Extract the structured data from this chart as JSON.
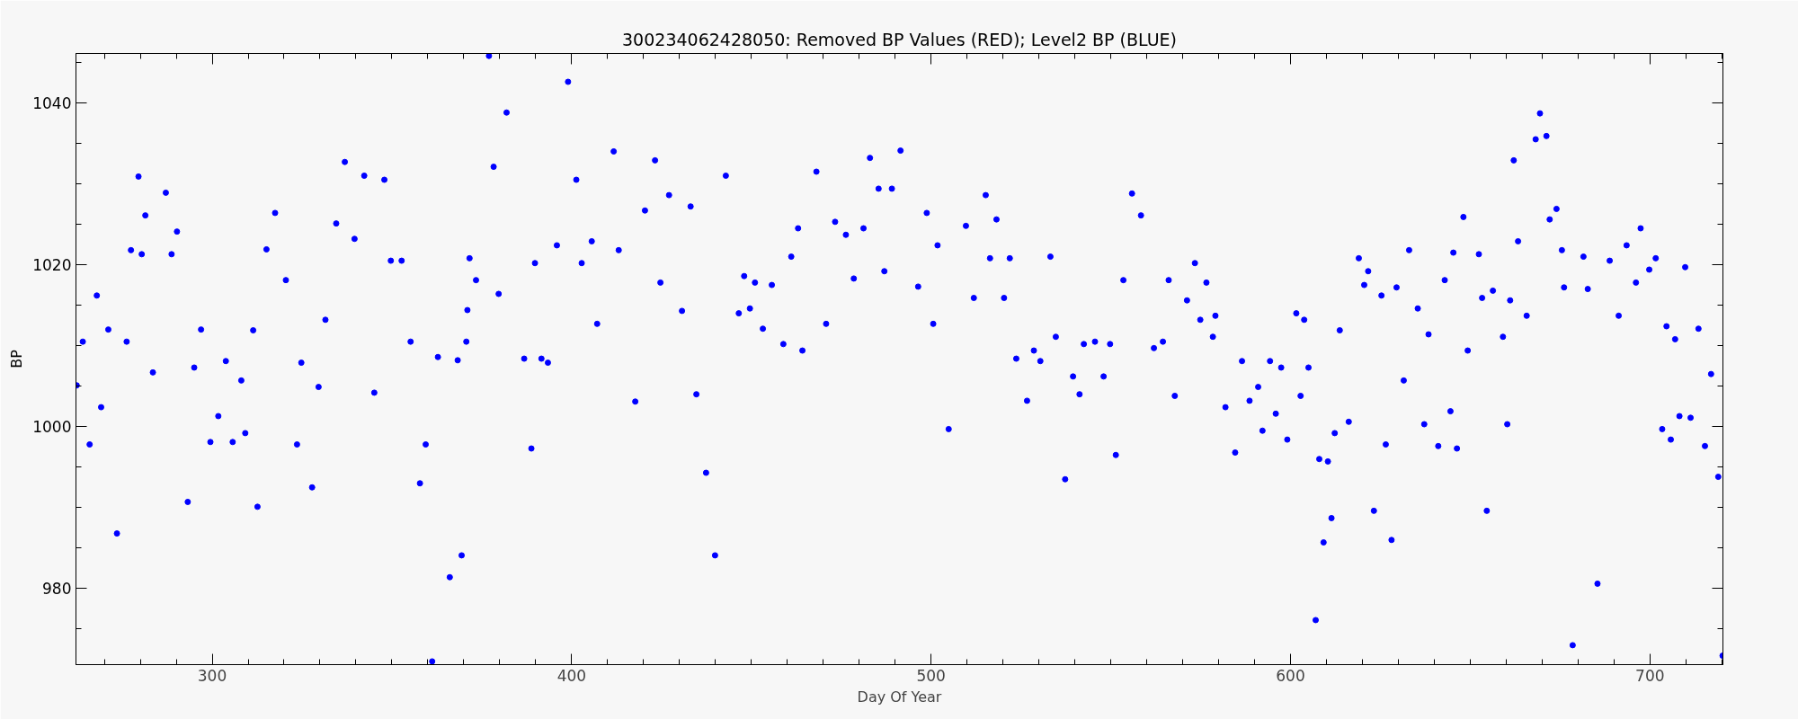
{
  "chart_data": {
    "type": "scatter",
    "title": "300234062428050: Removed BP Values (RED); Level2 BP (BLUE)",
    "xlabel": "Day Of Year",
    "ylabel": "BP",
    "xlim": [
      262.1,
      720.3
    ],
    "ylim": [
      970.6,
      1046.1
    ],
    "grid": false,
    "marker": "circle",
    "xticks": [
      {
        "value": 270,
        "label": null
      },
      {
        "value": 280,
        "label": null
      },
      {
        "value": 290,
        "label": null
      },
      300,
      {
        "value": 310,
        "label": null
      },
      {
        "value": 320,
        "label": null
      },
      {
        "value": 330,
        "label": null
      },
      {
        "value": 340,
        "label": null
      },
      {
        "value": 350,
        "label": null
      },
      {
        "value": 360,
        "label": null
      },
      {
        "value": 370,
        "label": null
      },
      {
        "value": 380,
        "label": null
      },
      {
        "value": 390,
        "label": null
      },
      400,
      {
        "value": 410,
        "label": null
      },
      {
        "value": 420,
        "label": null
      },
      {
        "value": 430,
        "label": null
      },
      {
        "value": 440,
        "label": null
      },
      {
        "value": 450,
        "label": null
      },
      {
        "value": 460,
        "label": null
      },
      {
        "value": 470,
        "label": null
      },
      {
        "value": 480,
        "label": null
      },
      {
        "value": 490,
        "label": null
      },
      500,
      {
        "value": 510,
        "label": null
      },
      {
        "value": 520,
        "label": null
      },
      {
        "value": 530,
        "label": null
      },
      {
        "value": 540,
        "label": null
      },
      {
        "value": 550,
        "label": null
      },
      {
        "value": 560,
        "label": null
      },
      {
        "value": 570,
        "label": null
      },
      {
        "value": 580,
        "label": null
      },
      {
        "value": 590,
        "label": null
      },
      600,
      {
        "value": 610,
        "label": null
      },
      {
        "value": 620,
        "label": null
      },
      {
        "value": 630,
        "label": null
      },
      {
        "value": 640,
        "label": null
      },
      {
        "value": 650,
        "label": null
      },
      {
        "value": 660,
        "label": null
      },
      {
        "value": 670,
        "label": null
      },
      {
        "value": 680,
        "label": null
      },
      {
        "value": 690,
        "label": null
      },
      700,
      {
        "value": 710,
        "label": null
      },
      {
        "value": 720,
        "label": null
      }
    ],
    "yticks": [
      {
        "value": 975,
        "label": null
      },
      980,
      {
        "value": 985,
        "label": null
      },
      {
        "value": 990,
        "label": null
      },
      {
        "value": 995,
        "label": null
      },
      1000,
      {
        "value": 1005,
        "label": null
      },
      {
        "value": 1010,
        "label": null
      },
      {
        "value": 1015,
        "label": null
      },
      1020,
      {
        "value": 1025,
        "label": null
      },
      {
        "value": 1030,
        "label": null
      },
      {
        "value": 1035,
        "label": null
      },
      1040,
      {
        "value": 1045,
        "label": null
      }
    ],
    "series": [
      {
        "color": "#0000ff",
        "x": [
          262.3,
          264.0,
          265.9,
          267.9,
          269.1,
          271.1,
          273.5,
          276.2,
          277.4,
          279.5,
          280.4,
          281.4,
          283.5,
          287.1,
          288.7,
          290.2,
          293.2,
          295.0,
          296.9,
          299.5,
          301.7,
          303.8,
          305.7,
          308.1,
          309.2,
          311.4,
          312.6,
          315.1,
          317.5,
          320.5,
          323.6,
          324.8,
          327.8,
          329.6,
          331.5,
          334.5,
          336.9,
          339.6,
          342.3,
          345.1,
          347.9,
          349.7,
          352.7,
          355.2,
          357.8,
          359.4,
          361.2,
          362.8,
          366.1,
          368.3,
          369.4,
          370.7,
          371.0,
          371.6,
          373.4,
          377.0,
          378.3,
          379.7,
          381.9,
          386.8,
          388.8,
          389.8,
          391.6,
          393.4,
          395.9,
          399.0,
          401.3,
          402.8,
          405.6,
          407.1,
          411.7,
          413.1,
          417.7,
          420.4,
          423.2,
          424.7,
          427.1,
          430.7,
          433.1,
          434.7,
          437.4,
          439.9,
          442.9,
          446.5,
          448.0,
          449.6,
          451.0,
          453.2,
          455.7,
          458.9,
          461.1,
          463.0,
          464.2,
          468.1,
          470.8,
          473.3,
          476.3,
          478.5,
          481.2,
          483.0,
          485.4,
          487.0,
          489.1,
          491.5,
          496.4,
          498.8,
          500.6,
          501.8,
          504.9,
          509.7,
          511.9,
          515.2,
          516.4,
          518.2,
          520.3,
          521.9,
          523.7,
          526.7,
          528.6,
          530.4,
          533.2,
          534.7,
          537.3,
          539.5,
          541.3,
          542.5,
          545.6,
          548.0,
          549.8,
          551.4,
          553.5,
          555.9,
          558.4,
          562.0,
          564.5,
          566.1,
          567.8,
          571.2,
          573.4,
          574.9,
          576.6,
          578.4,
          579.1,
          581.9,
          584.6,
          586.5,
          588.6,
          591.0,
          592.2,
          594.3,
          595.9,
          597.4,
          599.1,
          601.6,
          602.8,
          603.8,
          605.0,
          607.0,
          608.0,
          609.2,
          610.4,
          611.4,
          612.3,
          613.7,
          616.2,
          619.0,
          620.5,
          621.6,
          623.2,
          625.3,
          626.5,
          628.1,
          629.5,
          631.5,
          633.0,
          635.4,
          637.2,
          638.4,
          641.1,
          642.9,
          644.5,
          645.3,
          646.3,
          648.1,
          649.3,
          652.4,
          653.3,
          654.6,
          656.3,
          659.1,
          660.3,
          661.1,
          662.1,
          663.3,
          665.7,
          668.2,
          669.4,
          671.2,
          672.1,
          674.0,
          675.5,
          676.1,
          678.5,
          681.5,
          682.7,
          685.4,
          688.8,
          691.3,
          693.5,
          696.1,
          697.4,
          699.8,
          701.6,
          703.4,
          704.6,
          705.8,
          707.0,
          708.2,
          709.8,
          711.3,
          713.5,
          715.3,
          717.0,
          719.0,
          720.2
        ],
        "values": [
          1005.1,
          1010.5,
          997.8,
          1016.2,
          1002.4,
          1012.0,
          986.8,
          1010.5,
          1021.8,
          1030.9,
          1021.3,
          1026.1,
          1006.7,
          1028.9,
          1021.3,
          1024.1,
          990.7,
          1007.3,
          1012.0,
          998.1,
          1001.3,
          1008.1,
          998.1,
          1005.7,
          999.2,
          1011.9,
          990.1,
          1021.9,
          1026.4,
          1018.1,
          997.8,
          1007.9,
          992.5,
          1004.9,
          1013.2,
          1025.1,
          1032.7,
          1023.2,
          1031.0,
          1004.2,
          1030.5,
          1020.5,
          1020.5,
          1010.5,
          993.0,
          997.8,
          971.0,
          1008.6,
          981.4,
          1008.2,
          984.1,
          1010.5,
          1014.4,
          1020.8,
          1018.1,
          1045.8,
          1032.1,
          1016.4,
          1038.8,
          1008.4,
          997.3,
          1020.2,
          1008.4,
          1007.9,
          1022.4,
          1042.6,
          1030.5,
          1020.2,
          1022.9,
          1012.7,
          1034.0,
          1021.8,
          1003.1,
          1026.7,
          1032.9,
          1017.8,
          1028.6,
          1014.3,
          1027.2,
          1004.0,
          994.3,
          984.1,
          1031.0,
          1014.0,
          1018.6,
          1014.6,
          1017.8,
          1012.1,
          1017.5,
          1010.2,
          1021.0,
          1024.5,
          1009.4,
          1031.5,
          1012.7,
          1025.3,
          1023.7,
          1018.3,
          1024.5,
          1033.2,
          1029.4,
          1019.2,
          1029.4,
          1034.1,
          1017.3,
          1026.4,
          1012.7,
          1022.4,
          999.7,
          1024.8,
          1015.9,
          1028.6,
          1020.8,
          1025.6,
          1015.9,
          1020.8,
          1008.4,
          1003.2,
          1009.4,
          1008.1,
          1021.0,
          1011.1,
          993.5,
          1006.2,
          1004.0,
          1010.2,
          1010.5,
          1006.2,
          1010.2,
          996.5,
          1018.1,
          1028.8,
          1026.1,
          1009.7,
          1010.5,
          1018.1,
          1003.8,
          1015.6,
          1020.2,
          1013.2,
          1017.8,
          1011.1,
          1013.7,
          1002.4,
          996.8,
          1008.1,
          1003.2,
          1004.9,
          999.5,
          1008.1,
          1001.6,
          1007.3,
          998.4,
          1014.0,
          1003.8,
          1013.2,
          1007.3,
          976.1,
          996.0,
          985.7,
          995.7,
          988.7,
          999.2,
          1011.9,
          1000.6,
          1020.8,
          1017.5,
          1019.2,
          989.6,
          1016.2,
          997.8,
          986.0,
          1017.2,
          1005.7,
          1021.8,
          1014.6,
          1000.3,
          1011.4,
          997.6,
          1018.1,
          1001.9,
          1021.5,
          997.3,
          1025.9,
          1009.4,
          1021.3,
          1015.9,
          989.6,
          1016.8,
          1011.1,
          1000.3,
          1015.6,
          1032.9,
          1022.9,
          1013.7,
          1035.5,
          1038.7,
          1035.9,
          1025.6,
          1026.9,
          1021.8,
          1017.2,
          973.0,
          1021.0,
          1017.0,
          980.6,
          1020.5,
          1013.7,
          1022.4,
          1017.8,
          1024.5,
          1019.4,
          1020.8,
          999.7,
          1012.4,
          998.4,
          1010.8,
          1001.3,
          1019.7,
          1001.1,
          1012.1,
          997.6,
          1006.5,
          993.8,
          971.7
        ]
      }
    ]
  }
}
